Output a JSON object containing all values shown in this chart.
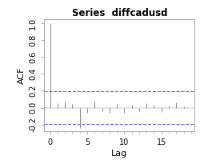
{
  "title": "Series  diffcadusd",
  "xlabel": "Lag",
  "ylabel": "ACF",
  "ylim": [
    -0.28,
    1.05
  ],
  "xlim": [
    -0.8,
    19.5
  ],
  "yticks": [
    -0.2,
    0.0,
    0.2,
    0.4,
    0.6,
    0.8,
    1.0
  ],
  "ytick_labels": [
    "-0.2",
    "0.0",
    "0.2",
    "0.4",
    "0.6",
    "0.8",
    "1.0"
  ],
  "xticks": [
    0,
    5,
    10,
    15
  ],
  "conf_interval": 0.197,
  "background_color": "#ffffff",
  "bar_color": "#888888",
  "ci_color": "#5555cc",
  "lags": [
    0,
    1,
    2,
    3,
    4,
    5,
    6,
    7,
    8,
    9,
    10,
    11,
    12,
    13,
    14,
    15,
    16,
    17,
    18,
    19
  ],
  "acf_values": [
    1.0,
    0.05,
    0.07,
    0.04,
    -0.24,
    -0.06,
    0.08,
    -0.04,
    -0.06,
    0.04,
    -0.06,
    0.03,
    -0.04,
    0.05,
    0.03,
    -0.05,
    0.02,
    0.06,
    0.01,
    0.0
  ],
  "title_fontsize": 8.5,
  "label_fontsize": 8,
  "tick_fontsize": 7
}
